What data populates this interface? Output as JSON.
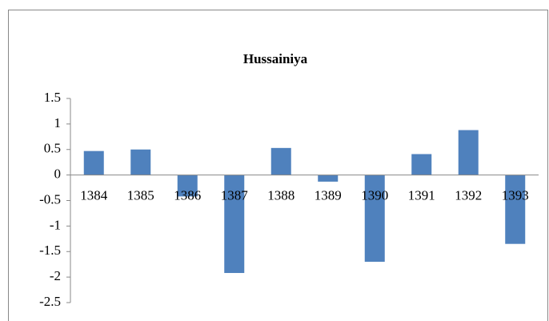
{
  "chart_data": {
    "type": "bar",
    "title": "Hussainiya",
    "categories": [
      "1384",
      "1385",
      "1386",
      "1387",
      "1388",
      "1389",
      "1390",
      "1391",
      "1392",
      "1393"
    ],
    "values": [
      0.47,
      0.5,
      -0.42,
      -1.92,
      0.53,
      -0.13,
      -1.7,
      0.41,
      0.88,
      -1.35
    ],
    "color": "#4f81bd",
    "ylim": [
      -2.5,
      1.5
    ],
    "yticks": [
      1.5,
      1,
      0.5,
      0,
      -0.5,
      -1,
      -1.5,
      -2,
      -2.5
    ],
    "grid": false
  }
}
